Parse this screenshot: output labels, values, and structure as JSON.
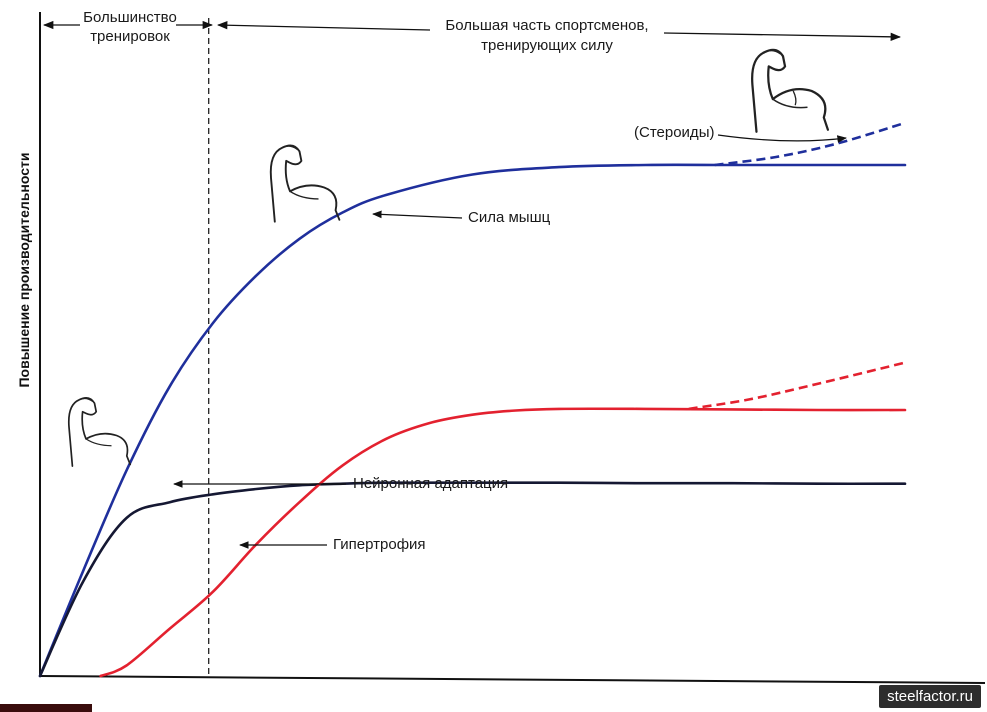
{
  "chart_data": {
    "type": "line",
    "title": "",
    "xlabel": "",
    "ylabel": "Повышение производительности",
    "colors": {
      "strength": "#1f2f9c",
      "neural": "#151833",
      "hypertrophy": "#e3212f"
    },
    "series": [
      {
        "name": "Сила мышц",
        "key": "strength",
        "x": [
          0,
          0.05,
          0.1,
          0.15,
          0.2,
          0.25,
          0.3,
          0.35,
          0.4,
          0.5,
          0.6,
          0.7,
          0.8,
          0.9,
          1.0
        ],
        "y": [
          0,
          0.2,
          0.39,
          0.55,
          0.67,
          0.76,
          0.83,
          0.88,
          0.913,
          0.952,
          0.966,
          0.97,
          0.97,
          0.97,
          0.97
        ]
      },
      {
        "name": "Нейронная адаптация",
        "key": "neural",
        "x": [
          0,
          0.05,
          0.1,
          0.15,
          0.2,
          0.25,
          0.3,
          0.35,
          0.4,
          0.5,
          0.6,
          0.7,
          0.8,
          0.9,
          1.0
        ],
        "y": [
          0,
          0.18,
          0.3,
          0.33,
          0.345,
          0.355,
          0.362,
          0.365,
          0.367,
          0.367,
          0.367,
          0.366,
          0.366,
          0.365,
          0.365
        ]
      },
      {
        "name": "Гипертрофия",
        "key": "hypertrophy",
        "x": [
          0.07,
          0.1,
          0.15,
          0.2,
          0.25,
          0.3,
          0.35,
          0.4,
          0.45,
          0.5,
          0.55,
          0.6,
          0.7,
          0.8,
          0.9,
          1.0
        ],
        "y": [
          0,
          0.02,
          0.09,
          0.16,
          0.25,
          0.33,
          0.4,
          0.45,
          0.48,
          0.496,
          0.504,
          0.507,
          0.507,
          0.506,
          0.505,
          0.505
        ]
      }
    ],
    "projections": [
      {
        "key": "strength",
        "x": [
          0.78,
          0.85,
          0.92,
          1.0
        ],
        "y": [
          0.97,
          0.985,
          1.01,
          1.05
        ]
      },
      {
        "key": "hypertrophy",
        "x": [
          0.75,
          0.82,
          0.9,
          1.0
        ],
        "y": [
          0.507,
          0.525,
          0.555,
          0.595
        ]
      }
    ],
    "divider_x": 0.195,
    "xlim": [
      0,
      1
    ],
    "ylim": [
      0,
      1
    ],
    "annotations": {
      "phase_early": [
        "Большинство",
        "тренировок"
      ],
      "phase_late": [
        "Большая часть спортсменов,",
        "тренирующих силу"
      ],
      "strength": "Сила мышц",
      "neural": "Нейронная адаптация",
      "hypertrophy": "Гипертрофия",
      "steroids": "(Стероиды)"
    }
  },
  "icons": [
    "flexed-arm-icon-small",
    "flexed-arm-icon-medium",
    "flexed-arm-icon-large"
  ],
  "watermark": "steelfactor.ru"
}
